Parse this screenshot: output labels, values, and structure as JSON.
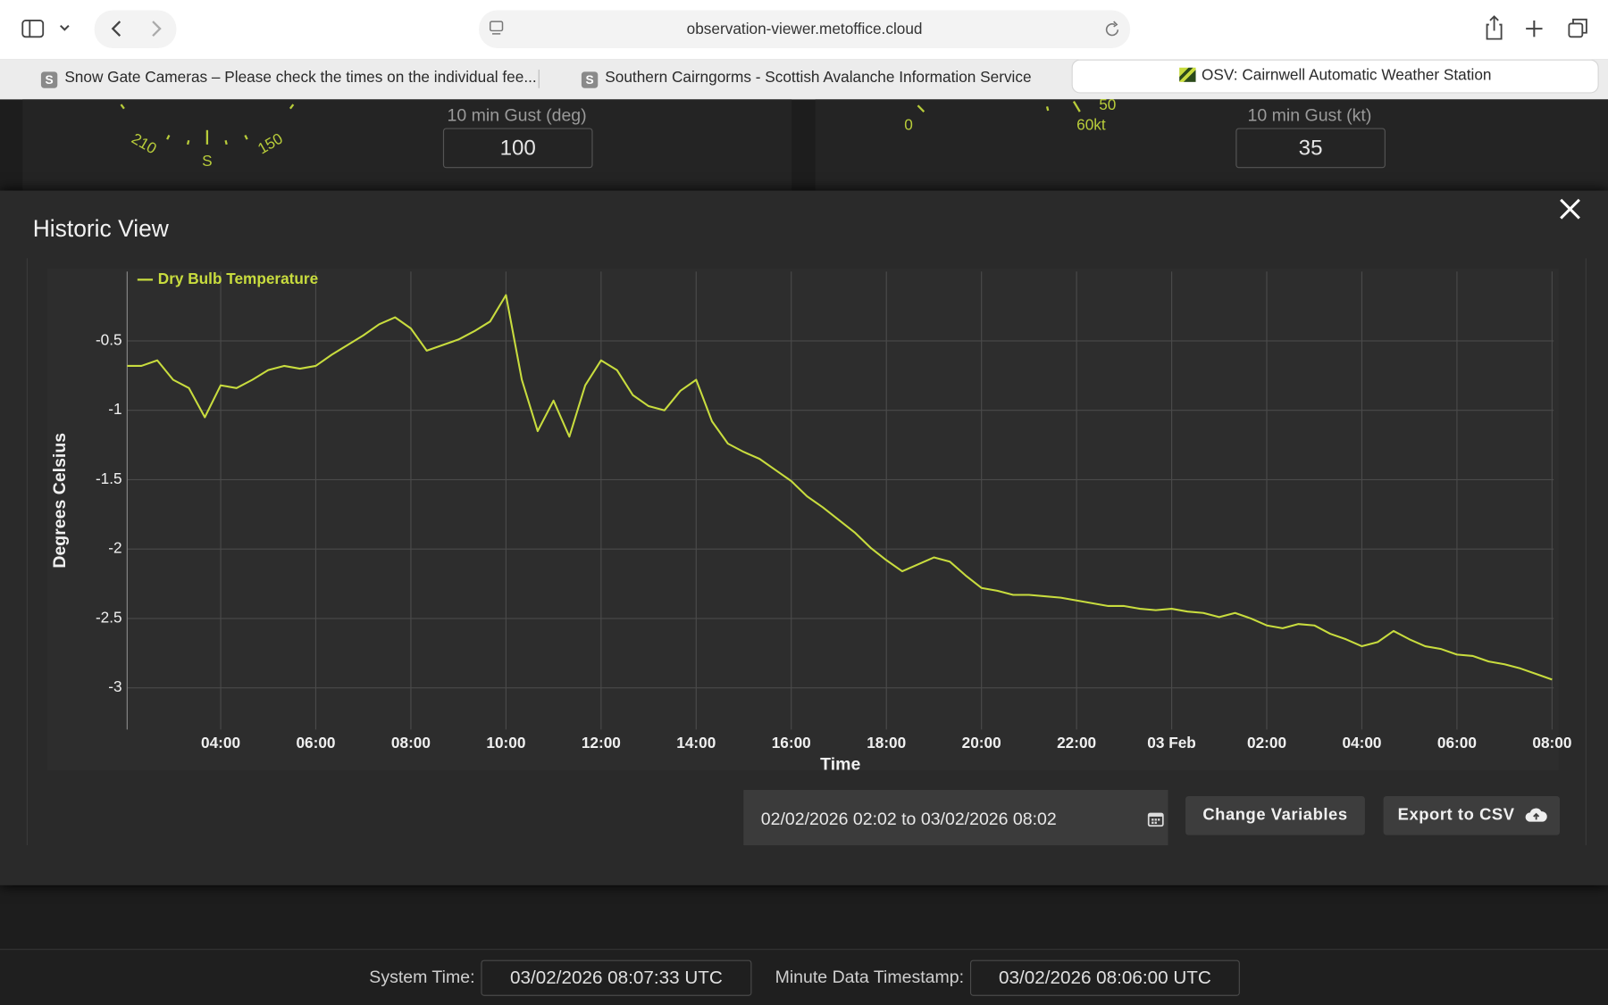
{
  "browser": {
    "url": "observation-viewer.metoffice.cloud",
    "tabs": [
      {
        "icon": "S",
        "title": "Snow Gate Cameras – Please check the times on the individual fee..."
      },
      {
        "icon": "S",
        "title": "Southern Cairngorms - Scottish Avalanche Information Service"
      },
      {
        "title": "OSV: Cairnwell Automatic Weather Station"
      }
    ]
  },
  "background": {
    "dial_labels": [
      "210",
      "S",
      "150",
      "0",
      "50",
      "60kt"
    ],
    "gust_deg_label": "10 min Gust (deg)",
    "gust_deg_value": "100",
    "gust_kt_label": "10 min Gust (kt)",
    "gust_kt_value": "35"
  },
  "modal": {
    "title": "Historic View",
    "date_range": "02/02/2026 02:02 to 03/02/2026 08:02",
    "buttons": [
      "Change Variables",
      "Export to CSV"
    ]
  },
  "chart_data": {
    "type": "line",
    "x_label": "Time",
    "y_label": "Degrees Celsius",
    "grid": true,
    "legend": "top-left",
    "xlim": [
      "2026-02-02T02:02",
      "2026-02-03T08:02"
    ],
    "xticks": [
      {
        "value": "2026-02-02T04:00",
        "label": "04:00"
      },
      {
        "value": "2026-02-02T06:00",
        "label": "06:00"
      },
      {
        "value": "2026-02-02T08:00",
        "label": "08:00"
      },
      {
        "value": "2026-02-02T10:00",
        "label": "10:00"
      },
      {
        "value": "2026-02-02T12:00",
        "label": "12:00"
      },
      {
        "value": "2026-02-02T14:00",
        "label": "14:00"
      },
      {
        "value": "2026-02-02T16:00",
        "label": "16:00"
      },
      {
        "value": "2026-02-02T18:00",
        "label": "18:00"
      },
      {
        "value": "2026-02-02T20:00",
        "label": "20:00"
      },
      {
        "value": "2026-02-02T22:00",
        "label": "22:00"
      },
      {
        "value": "2026-02-03T00:00",
        "label": "03 Feb"
      },
      {
        "value": "2026-02-03T02:00",
        "label": "02:00"
      },
      {
        "value": "2026-02-03T04:00",
        "label": "04:00"
      },
      {
        "value": "2026-02-03T06:00",
        "label": "06:00"
      },
      {
        "value": "2026-02-03T08:00",
        "label": "08:00"
      }
    ],
    "ylim": [
      -3.3,
      0
    ],
    "yticks": [
      -0.5,
      -1,
      -1.5,
      -2,
      -2.5,
      -3
    ],
    "x": [
      "2026-02-02T02:02",
      "2026-02-02T02:20",
      "2026-02-02T02:40",
      "2026-02-02T03:00",
      "2026-02-02T03:20",
      "2026-02-02T03:40",
      "2026-02-02T04:00",
      "2026-02-02T04:20",
      "2026-02-02T04:40",
      "2026-02-02T05:00",
      "2026-02-02T05:20",
      "2026-02-02T05:40",
      "2026-02-02T06:00",
      "2026-02-02T06:20",
      "2026-02-02T06:40",
      "2026-02-02T07:00",
      "2026-02-02T07:20",
      "2026-02-02T07:40",
      "2026-02-02T08:00",
      "2026-02-02T08:20",
      "2026-02-02T08:40",
      "2026-02-02T09:00",
      "2026-02-02T09:20",
      "2026-02-02T09:40",
      "2026-02-02T10:00",
      "2026-02-02T10:20",
      "2026-02-02T10:40",
      "2026-02-02T11:00",
      "2026-02-02T11:20",
      "2026-02-02T11:40",
      "2026-02-02T12:00",
      "2026-02-02T12:20",
      "2026-02-02T12:40",
      "2026-02-02T13:00",
      "2026-02-02T13:20",
      "2026-02-02T13:40",
      "2026-02-02T14:00",
      "2026-02-02T14:20",
      "2026-02-02T14:40",
      "2026-02-02T15:00",
      "2026-02-02T15:20",
      "2026-02-02T15:40",
      "2026-02-02T16:00",
      "2026-02-02T16:20",
      "2026-02-02T16:40",
      "2026-02-02T17:00",
      "2026-02-02T17:20",
      "2026-02-02T17:40",
      "2026-02-02T18:00",
      "2026-02-02T18:20",
      "2026-02-02T18:40",
      "2026-02-02T19:00",
      "2026-02-02T19:20",
      "2026-02-02T19:40",
      "2026-02-02T20:00",
      "2026-02-02T20:20",
      "2026-02-02T20:40",
      "2026-02-02T21:00",
      "2026-02-02T21:20",
      "2026-02-02T21:40",
      "2026-02-02T22:00",
      "2026-02-02T22:20",
      "2026-02-02T22:40",
      "2026-02-02T23:00",
      "2026-02-02T23:20",
      "2026-02-02T23:40",
      "2026-02-03T00:00",
      "2026-02-03T00:20",
      "2026-02-03T00:40",
      "2026-02-03T01:00",
      "2026-02-03T01:20",
      "2026-02-03T01:40",
      "2026-02-03T02:00",
      "2026-02-03T02:20",
      "2026-02-03T02:40",
      "2026-02-03T03:00",
      "2026-02-03T03:20",
      "2026-02-03T03:40",
      "2026-02-03T04:00",
      "2026-02-03T04:20",
      "2026-02-03T04:40",
      "2026-02-03T05:00",
      "2026-02-03T05:20",
      "2026-02-03T05:40",
      "2026-02-03T06:00",
      "2026-02-03T06:20",
      "2026-02-03T06:40",
      "2026-02-03T07:00",
      "2026-02-03T07:20",
      "2026-02-03T07:40",
      "2026-02-03T08:00"
    ],
    "series": [
      {
        "name": "Dry Bulb Temperature",
        "color": "#c8dc3e",
        "values": [
          -0.68,
          -0.68,
          -0.64,
          -0.78,
          -0.84,
          -1.05,
          -0.82,
          -0.84,
          -0.78,
          -0.71,
          -0.68,
          -0.7,
          -0.68,
          -0.6,
          -0.53,
          -0.46,
          -0.38,
          -0.33,
          -0.41,
          -0.57,
          -0.53,
          -0.49,
          -0.43,
          -0.36,
          -0.17,
          -0.78,
          -1.15,
          -0.93,
          -1.19,
          -0.82,
          -0.64,
          -0.71,
          -0.89,
          -0.97,
          -1.0,
          -0.86,
          -0.78,
          -1.08,
          -1.24,
          -1.3,
          -1.35,
          -1.43,
          -1.51,
          -1.62,
          -1.7,
          -1.79,
          -1.88,
          -1.99,
          -2.08,
          -2.16,
          -2.11,
          -2.06,
          -2.09,
          -2.19,
          -2.28,
          -2.3,
          -2.33,
          -2.33,
          -2.34,
          -2.35,
          -2.37,
          -2.39,
          -2.41,
          -2.41,
          -2.43,
          -2.44,
          -2.43,
          -2.45,
          -2.46,
          -2.49,
          -2.46,
          -2.5,
          -2.55,
          -2.57,
          -2.54,
          -2.55,
          -2.61,
          -2.65,
          -2.7,
          -2.67,
          -2.59,
          -2.65,
          -2.7,
          -2.72,
          -2.76,
          -2.77,
          -2.81,
          -2.83,
          -2.86,
          -2.9,
          -2.94
        ]
      }
    ]
  },
  "footer": {
    "system_time_label": "System Time:",
    "system_time": "03/02/2026 08:07:33 UTC",
    "minute_label": "Minute Data Timestamp:",
    "minute_time": "03/02/2026 08:06:00 UTC"
  }
}
